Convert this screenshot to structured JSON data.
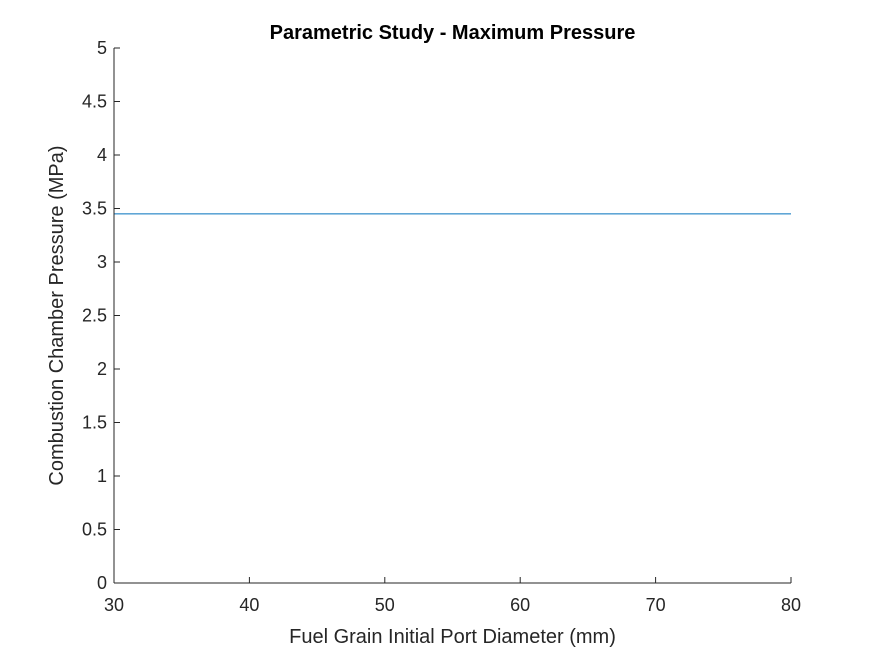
{
  "chart_data": {
    "type": "line",
    "title": "Parametric Study - Maximum Pressure",
    "xlabel": "Fuel Grain Initial Port Diameter (mm)",
    "ylabel": "Combustion Chamber Pressure (MPa)",
    "xlim": [
      30,
      80
    ],
    "ylim": [
      0,
      5
    ],
    "xticks": [
      "30",
      "40",
      "50",
      "60",
      "70",
      "80"
    ],
    "yticks": [
      "0",
      "0.5",
      "1",
      "1.5",
      "2",
      "2.5",
      "3",
      "3.5",
      "4",
      "4.5",
      "5"
    ],
    "grid": false,
    "series": [
      {
        "x": [
          30,
          80
        ],
        "y": [
          3.45,
          3.45
        ],
        "color": "#0072BD"
      }
    ]
  }
}
